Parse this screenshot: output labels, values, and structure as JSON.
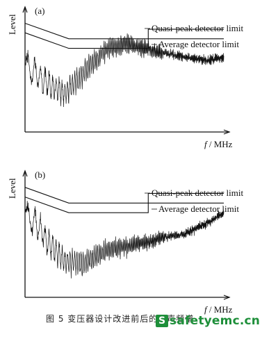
{
  "chart_data": [
    {
      "type": "line",
      "panel_label": "(a)",
      "ylabel": "Level",
      "xlabel_italic": "f",
      "xlabel_rest": " / MHz",
      "series": [
        {
          "name": "Quasi-peak detector limit",
          "x": [
            0,
            0.22,
            0.22,
            0.62,
            0.62,
            1.0
          ],
          "y": [
            0.91,
            0.78,
            0.78,
            0.78,
            0.86,
            0.86
          ]
        },
        {
          "name": "Average detector limit",
          "x": [
            0,
            0.22,
            0.22,
            0.62,
            0.62,
            1.0
          ],
          "y": [
            0.83,
            0.7,
            0.7,
            0.7,
            0.78,
            0.78
          ]
        },
        {
          "x": [
            0.0,
            0.05,
            0.12,
            0.2,
            0.3,
            0.4,
            0.5,
            0.6,
            0.7,
            0.8,
            0.9,
            1.0
          ],
          "y": [
            0.55,
            0.5,
            0.4,
            0.32,
            0.5,
            0.68,
            0.74,
            0.7,
            0.66,
            0.63,
            0.6,
            0.62
          ]
        }
      ]
    },
    {
      "type": "line",
      "panel_label": "(b)",
      "ylabel": "Level",
      "xlabel_italic": "f",
      "xlabel_rest": " / MHz",
      "series": [
        {
          "name": "Quasi-peak detector limit",
          "x": [
            0,
            0.22,
            0.22,
            0.62,
            0.62,
            1.0
          ],
          "y": [
            0.91,
            0.78,
            0.78,
            0.78,
            0.86,
            0.86
          ]
        },
        {
          "name": "Average detector limit",
          "x": [
            0,
            0.22,
            0.22,
            0.62,
            0.62,
            1.0
          ],
          "y": [
            0.83,
            0.7,
            0.7,
            0.7,
            0.78,
            0.78
          ]
        },
        {
          "x": [
            0.0,
            0.05,
            0.12,
            0.2,
            0.3,
            0.4,
            0.5,
            0.6,
            0.7,
            0.8,
            0.9,
            1.0
          ],
          "y": [
            0.68,
            0.62,
            0.45,
            0.3,
            0.28,
            0.38,
            0.42,
            0.45,
            0.5,
            0.52,
            0.6,
            0.7
          ]
        }
      ]
    }
  ],
  "caption": "图 5   变压器设计改进前后的噪声频谱",
  "logo": {
    "mark": "S",
    "text": "safetyemc.cn"
  }
}
